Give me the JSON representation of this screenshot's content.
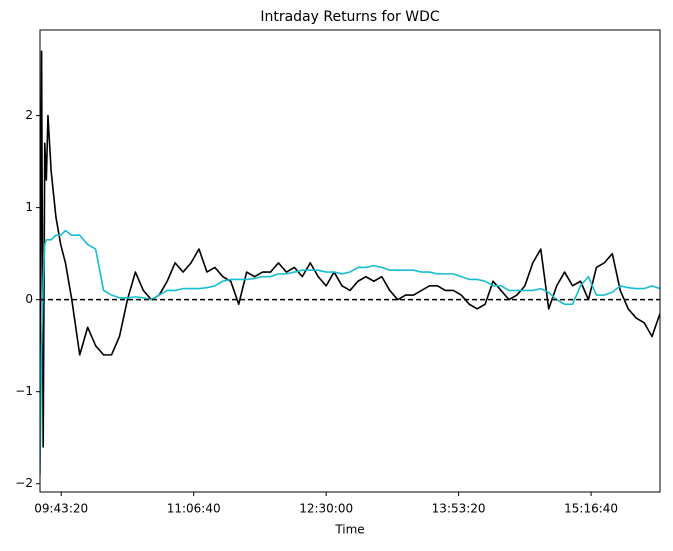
{
  "chart_data": {
    "type": "line",
    "title": "Intraday Returns for WDC",
    "xlabel": "Time",
    "x": [
      "09:30:00",
      "09:31:00",
      "09:32:00",
      "09:33:00",
      "09:34:00",
      "09:35:00",
      "09:37:00",
      "09:40:00",
      "09:43:00",
      "09:46:00",
      "09:50:00",
      "09:55:00",
      "10:00:00",
      "10:05:00",
      "10:10:00",
      "10:15:00",
      "10:20:00",
      "10:25:00",
      "10:30:00",
      "10:35:00",
      "10:40:00",
      "10:45:00",
      "10:50:00",
      "10:55:00",
      "11:00:00",
      "11:05:00",
      "11:10:00",
      "11:15:00",
      "11:20:00",
      "11:25:00",
      "11:30:00",
      "11:35:00",
      "11:40:00",
      "11:45:00",
      "11:50:00",
      "11:55:00",
      "12:00:00",
      "12:05:00",
      "12:10:00",
      "12:15:00",
      "12:20:00",
      "12:25:00",
      "12:30:00",
      "12:35:00",
      "12:40:00",
      "12:45:00",
      "12:50:00",
      "12:55:00",
      "13:00:00",
      "13:05:00",
      "13:10:00",
      "13:15:00",
      "13:20:00",
      "13:25:00",
      "13:30:00",
      "13:35:00",
      "13:40:00",
      "13:45:00",
      "13:50:00",
      "13:55:00",
      "14:00:00",
      "14:05:00",
      "14:10:00",
      "14:15:00",
      "14:20:00",
      "14:25:00",
      "14:30:00",
      "14:35:00",
      "14:40:00",
      "14:45:00",
      "14:50:00",
      "14:55:00",
      "15:00:00",
      "15:05:00",
      "15:10:00",
      "15:15:00",
      "15:20:00",
      "15:25:00",
      "15:30:00",
      "15:35:00",
      "15:40:00",
      "15:45:00",
      "15:50:00",
      "15:55:00",
      "16:00:00"
    ],
    "series": [
      {
        "color": "#000000",
        "values": [
          -1.0,
          2.7,
          -1.6,
          1.7,
          1.3,
          2.0,
          1.4,
          0.9,
          0.6,
          0.4,
          0.0,
          -0.6,
          -0.3,
          -0.5,
          -0.6,
          -0.6,
          -0.4,
          0.0,
          0.3,
          0.1,
          0.0,
          0.05,
          0.2,
          0.4,
          0.3,
          0.4,
          0.55,
          0.3,
          0.35,
          0.25,
          0.2,
          -0.05,
          0.3,
          0.25,
          0.3,
          0.3,
          0.4,
          0.3,
          0.35,
          0.25,
          0.4,
          0.25,
          0.15,
          0.3,
          0.15,
          0.1,
          0.2,
          0.25,
          0.2,
          0.25,
          0.1,
          0.0,
          0.05,
          0.05,
          0.1,
          0.15,
          0.15,
          0.1,
          0.1,
          0.05,
          -0.05,
          -0.1,
          -0.05,
          0.2,
          0.1,
          0.0,
          0.05,
          0.15,
          0.4,
          0.55,
          -0.1,
          0.15,
          0.3,
          0.15,
          0.2,
          0.0,
          0.35,
          0.4,
          0.5,
          0.1,
          -0.1,
          -0.2,
          -0.25,
          -0.4,
          -0.15
        ]
      },
      {
        "color": "#17becf",
        "values": [
          -1.9,
          -0.5,
          0.2,
          0.6,
          0.65,
          0.65,
          0.65,
          0.7,
          0.7,
          0.75,
          0.7,
          0.7,
          0.6,
          0.55,
          0.1,
          0.05,
          0.02,
          0.02,
          0.03,
          0.02,
          0.0,
          0.05,
          0.1,
          0.1,
          0.12,
          0.12,
          0.12,
          0.13,
          0.15,
          0.2,
          0.22,
          0.22,
          0.22,
          0.23,
          0.25,
          0.25,
          0.28,
          0.28,
          0.3,
          0.32,
          0.32,
          0.32,
          0.3,
          0.3,
          0.28,
          0.3,
          0.35,
          0.35,
          0.37,
          0.35,
          0.32,
          0.32,
          0.32,
          0.32,
          0.3,
          0.3,
          0.28,
          0.28,
          0.28,
          0.25,
          0.22,
          0.22,
          0.2,
          0.15,
          0.15,
          0.1,
          0.1,
          0.1,
          0.1,
          0.12,
          0.08,
          0.0,
          -0.05,
          -0.05,
          0.15,
          0.25,
          0.05,
          0.05,
          0.08,
          0.15,
          0.13,
          0.12,
          0.12,
          0.15,
          0.12
        ]
      }
    ],
    "xlim": [
      "09:30:00",
      "16:00:00"
    ],
    "xticks": [
      "09:43:20",
      "11:06:40",
      "12:30:00",
      "13:53:20",
      "15:16:40"
    ],
    "ylim": [
      -2.09,
      2.93
    ],
    "yticks": [
      {
        "value": -2,
        "label": "−2"
      },
      {
        "value": -1,
        "label": "−1"
      },
      0,
      1,
      2
    ],
    "reference_line": {
      "value": 0,
      "style": "dashed",
      "color": "#000000"
    }
  }
}
